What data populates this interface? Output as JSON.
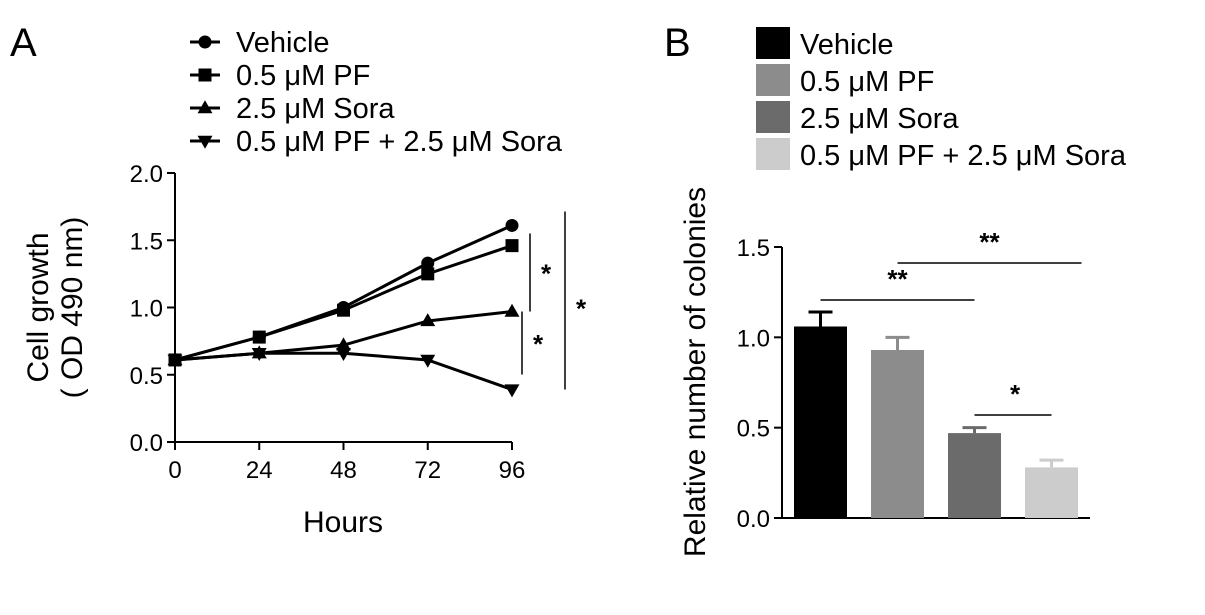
{
  "chart_data": [
    {
      "type": "line",
      "panel": "A",
      "xlabel": "Hours",
      "ylabel_lines": [
        "Cell growth",
        "( OD 490 nm)"
      ],
      "x": [
        0,
        24,
        48,
        72,
        96
      ],
      "x_ticks": [
        "0",
        "24",
        "48",
        "72",
        "96"
      ],
      "xlim": [
        0,
        96
      ],
      "y_ticks": [
        "0.0",
        "0.5",
        "1.0",
        "1.5",
        "2.0"
      ],
      "ylim": [
        0,
        2
      ],
      "grid": false,
      "legend_position": "top",
      "series": [
        {
          "name": "Vehicle",
          "marker": "circle",
          "values": [
            0.61,
            0.78,
            1.0,
            1.33,
            1.61
          ]
        },
        {
          "name": "0.5 μM PF",
          "marker": "square",
          "values": [
            0.61,
            0.78,
            0.98,
            1.25,
            1.46
          ]
        },
        {
          "name": "2.5 μM Sora",
          "marker": "triangle-up",
          "values": [
            0.61,
            0.66,
            0.72,
            0.9,
            0.97
          ]
        },
        {
          "name": "0.5 μM PF + 2.5 μM Sora",
          "marker": "triangle-down",
          "values": [
            0.61,
            0.66,
            0.66,
            0.61,
            0.39
          ]
        }
      ],
      "annotations": [
        {
          "label": "*",
          "between": [
            "Vehicle",
            "2.5 μM Sora"
          ]
        },
        {
          "label": "*",
          "between": [
            "2.5 μM Sora",
            "0.5 μM PF + 2.5 μM Sora"
          ]
        },
        {
          "label": "*",
          "between": [
            "Vehicle",
            "0.5 μM PF + 2.5 μM Sora"
          ]
        }
      ]
    },
    {
      "type": "bar",
      "panel": "B",
      "ylabel": "Relative number of colonies",
      "categories": [
        "Vehicle",
        "0.5 μM PF",
        "2.5 μM Sora",
        "0.5 μM PF + 2.5 μM Sora"
      ],
      "values": [
        1.06,
        0.93,
        0.47,
        0.28
      ],
      "errors": [
        0.08,
        0.07,
        0.03,
        0.04
      ],
      "colors": [
        "#000000",
        "#8c8c8c",
        "#6b6b6b",
        "#cccccc"
      ],
      "y_ticks": [
        "0.0",
        "0.5",
        "1.0",
        "1.5"
      ],
      "ylim": [
        0,
        1.5
      ],
      "grid": false,
      "legend_position": "top",
      "significance": [
        {
          "label": "**",
          "from": 0,
          "to": 2
        },
        {
          "label": "**",
          "from": 1,
          "to": 3
        },
        {
          "label": "*",
          "from": 2,
          "to": 3
        }
      ]
    }
  ]
}
